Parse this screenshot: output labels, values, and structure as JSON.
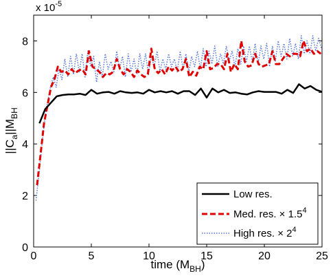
{
  "chart_data": {
    "type": "line",
    "title": "",
    "xlabel": "time (M",
    "xlabel_sub": "BH",
    "xlabel_close": ")",
    "ylabel": "||C",
    "ylabel_sub_a": "a",
    "ylabel_mid": "||M",
    "ylabel_sub_b": "BH",
    "y_multiplier": "x 10",
    "y_multiplier_exp": "-5",
    "xlim": [
      0,
      25
    ],
    "ylim": [
      0,
      9
    ],
    "xticks": [
      "0",
      "5",
      "10",
      "15",
      "20",
      "25"
    ],
    "yticks": [
      "0",
      "2",
      "4",
      "6",
      "8"
    ],
    "legend_position": "bottom-right",
    "series": [
      {
        "name": "Low res.",
        "legend_text": "Low res.",
        "legend_exp": "",
        "color": "#000000",
        "style": "solid",
        "x": [
          0.5,
          1.0,
          1.5,
          2.0,
          2.5,
          3.0,
          3.5,
          4.0,
          4.5,
          5.0,
          5.5,
          6.0,
          6.5,
          7.0,
          7.5,
          8.0,
          8.5,
          9.0,
          9.5,
          10.0,
          10.5,
          11.0,
          11.5,
          12.0,
          12.5,
          13.0,
          13.5,
          14.0,
          14.5,
          15.0,
          15.5,
          16.0,
          16.5,
          17.0,
          17.5,
          18.0,
          18.5,
          19.0,
          19.5,
          20.0,
          20.5,
          21.0,
          21.5,
          22.0,
          22.5,
          23.0,
          23.5,
          24.0,
          24.5,
          25.0
        ],
        "y": [
          4.8,
          5.35,
          5.6,
          5.85,
          5.9,
          5.92,
          5.92,
          5.95,
          5.9,
          6.1,
          5.95,
          6.0,
          6.02,
          5.95,
          6.05,
          6.0,
          5.98,
          6.0,
          5.95,
          6.1,
          6.0,
          6.05,
          6.0,
          6.05,
          5.95,
          6.05,
          6.05,
          5.9,
          6.15,
          5.8,
          6.15,
          6.0,
          6.1,
          5.98,
          6.0,
          5.95,
          5.92,
          6.0,
          6.05,
          6.02,
          6.02,
          6.02,
          5.95,
          6.1,
          5.98,
          6.32,
          6.15,
          6.25,
          6.1,
          6.02
        ]
      },
      {
        "name": "Med. res.",
        "legend_text": "Med. res. × 1.5",
        "legend_exp": "4",
        "color": "#e00000",
        "style": "dashed",
        "x": [
          0.3,
          0.6,
          0.9,
          1.2,
          1.5,
          1.8,
          2.1,
          2.4,
          2.7,
          3.0,
          3.3,
          3.6,
          3.9,
          4.2,
          4.5,
          4.8,
          5.1,
          5.4,
          5.7,
          6.0,
          6.3,
          6.6,
          6.9,
          7.2,
          7.5,
          7.8,
          8.1,
          8.4,
          8.7,
          9.0,
          9.3,
          9.6,
          9.9,
          10.2,
          10.5,
          10.8,
          11.1,
          11.4,
          11.7,
          12.0,
          12.3,
          12.6,
          12.9,
          13.2,
          13.5,
          13.8,
          14.1,
          14.4,
          14.7,
          15.0,
          15.3,
          15.6,
          15.9,
          16.2,
          16.5,
          16.8,
          17.1,
          17.4,
          17.7,
          18.0,
          18.3,
          18.6,
          18.9,
          19.2,
          19.5,
          19.8,
          20.1,
          20.4,
          20.7,
          21.0,
          21.3,
          21.6,
          21.9,
          22.2,
          22.5,
          22.8,
          23.1,
          23.4,
          23.7,
          24.0,
          24.3,
          24.6,
          24.9
        ],
        "y": [
          2.4,
          3.6,
          4.8,
          5.5,
          6.2,
          6.5,
          7.0,
          6.8,
          6.85,
          6.7,
          6.9,
          6.75,
          6.85,
          6.9,
          6.7,
          7.6,
          7.0,
          6.9,
          6.8,
          6.6,
          6.75,
          6.7,
          6.8,
          7.3,
          6.9,
          6.7,
          6.9,
          6.8,
          6.6,
          6.85,
          6.7,
          6.6,
          6.7,
          7.7,
          6.9,
          6.75,
          6.9,
          6.7,
          7.0,
          6.85,
          7.0,
          6.8,
          6.9,
          7.3,
          6.6,
          6.8,
          6.65,
          7.0,
          6.9,
          7.6,
          6.9,
          6.95,
          7.1,
          7.1,
          6.9,
          7.5,
          6.8,
          7.1,
          6.9,
          8.0,
          7.2,
          7.0,
          7.05,
          7.5,
          7.1,
          7.0,
          7.05,
          7.1,
          7.6,
          7.1,
          7.1,
          7.3,
          7.5,
          7.4,
          7.5,
          7.5,
          7.4,
          8.0,
          7.6,
          7.7,
          7.5,
          7.6,
          7.5
        ]
      },
      {
        "name": "High res.",
        "legend_text": "High res. × 2",
        "legend_exp": "4",
        "color": "#5577dd",
        "style": "dotted",
        "x": [
          0.2,
          0.45,
          0.7,
          0.95,
          1.2,
          1.45,
          1.7,
          1.95,
          2.2,
          2.45,
          2.7,
          2.95,
          3.2,
          3.45,
          3.7,
          3.95,
          4.2,
          4.45,
          4.7,
          4.95,
          5.2,
          5.45,
          5.7,
          5.95,
          6.2,
          6.45,
          6.7,
          6.95,
          7.2,
          7.45,
          7.7,
          7.95,
          8.2,
          8.45,
          8.7,
          8.95,
          9.2,
          9.45,
          9.7,
          9.95,
          10.2,
          10.45,
          10.7,
          10.95,
          11.2,
          11.45,
          11.7,
          11.95,
          12.2,
          12.45,
          12.7,
          12.95,
          13.2,
          13.45,
          13.7,
          13.95,
          14.2,
          14.45,
          14.7,
          14.95,
          15.2,
          15.45,
          15.7,
          15.95,
          16.2,
          16.45,
          16.7,
          16.95,
          17.2,
          17.45,
          17.7,
          17.95,
          18.2,
          18.45,
          18.7,
          18.95,
          19.2,
          19.45,
          19.7,
          19.95,
          20.2,
          20.45,
          20.7,
          20.95,
          21.2,
          21.45,
          21.7,
          21.95,
          22.2,
          22.45,
          22.7,
          22.95,
          23.2,
          23.45,
          23.7,
          23.95,
          24.2,
          24.45,
          24.7,
          24.95
        ],
        "y": [
          1.8,
          2.8,
          3.9,
          4.9,
          5.6,
          6.2,
          6.6,
          6.2,
          6.9,
          6.5,
          7.3,
          6.6,
          7.4,
          6.7,
          7.5,
          6.8,
          7.5,
          6.6,
          7.6,
          7.0,
          7.4,
          6.4,
          7.2,
          6.6,
          7.5,
          6.9,
          7.2,
          6.8,
          7.6,
          6.9,
          7.4,
          6.6,
          7.5,
          6.8,
          7.3,
          6.7,
          7.5,
          6.9,
          7.5,
          6.7,
          7.4,
          7.0,
          7.6,
          6.8,
          7.3,
          6.9,
          7.5,
          7.0,
          7.3,
          6.8,
          7.6,
          6.9,
          7.5,
          6.8,
          7.4,
          7.0,
          7.6,
          6.9,
          7.7,
          7.0,
          7.6,
          7.1,
          7.8,
          7.0,
          7.5,
          7.1,
          7.8,
          7.2,
          7.6,
          7.0,
          7.7,
          7.1,
          7.8,
          7.2,
          7.8,
          7.2,
          7.9,
          7.1,
          7.8,
          7.3,
          7.9,
          7.0,
          7.8,
          7.2,
          8.0,
          7.4,
          7.9,
          7.3,
          8.1,
          7.4,
          7.9,
          7.3,
          8.2,
          7.5,
          8.0,
          7.5,
          8.2,
          7.6,
          8.1,
          7.7
        ]
      }
    ]
  }
}
